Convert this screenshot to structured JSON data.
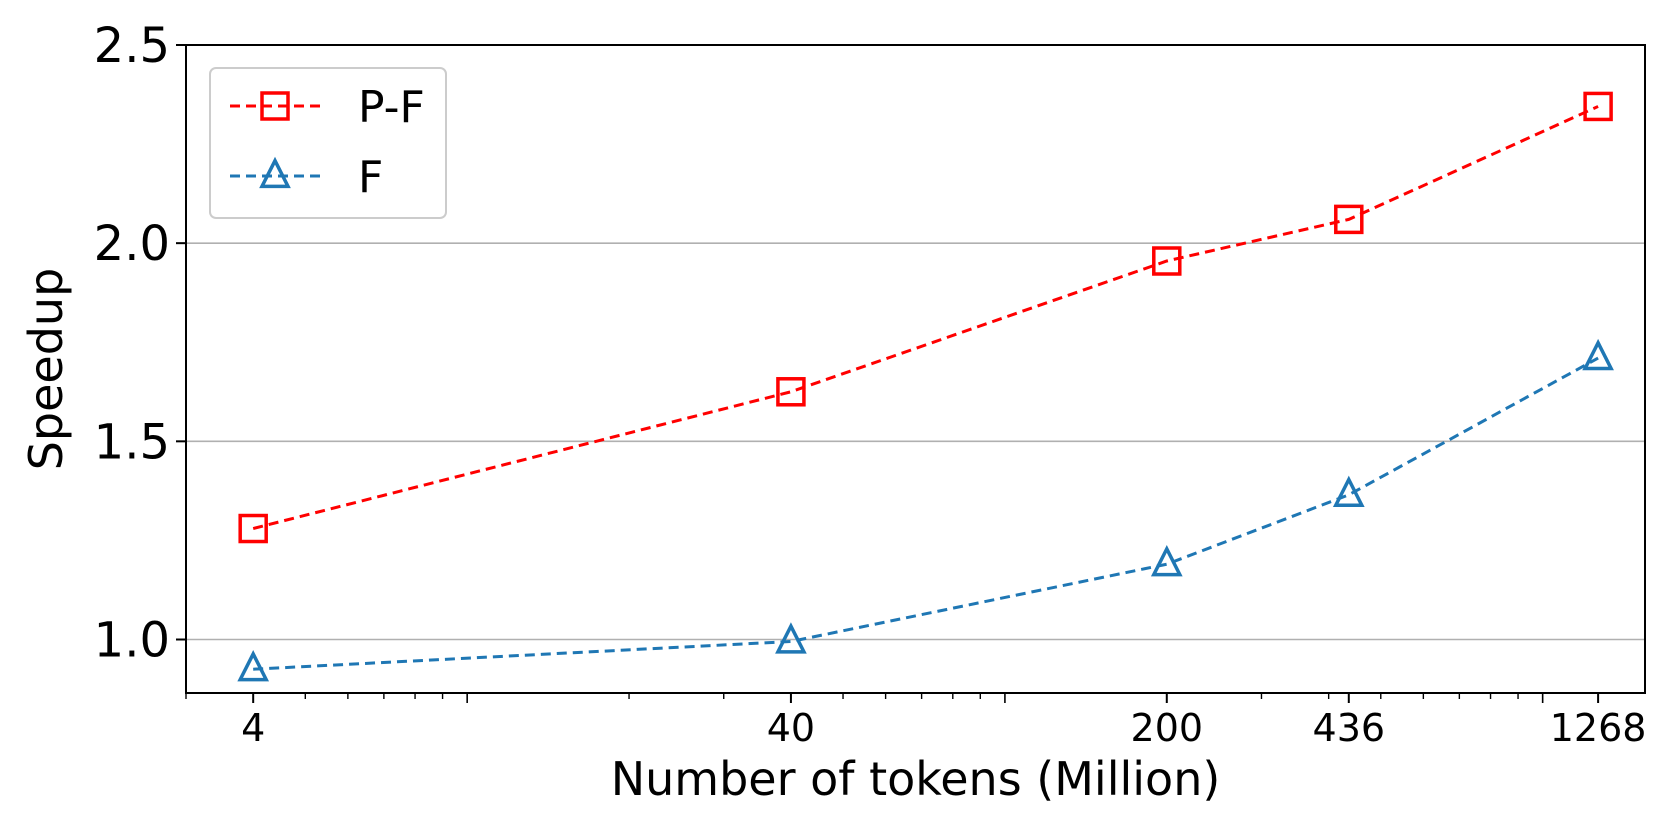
{
  "chart_data": {
    "type": "line",
    "title": "",
    "xlabel": "Number of tokens (Million)",
    "ylabel": "Speedup",
    "x_scale": "log",
    "x": [
      4,
      40,
      200,
      436,
      1268
    ],
    "x_tick_labels": [
      "4",
      "40",
      "200",
      "436",
      "1268"
    ],
    "xlim": [
      3,
      1550
    ],
    "ylim": [
      0.865,
      2.5
    ],
    "y_ticks": [
      1.0,
      1.5,
      2.0,
      2.5
    ],
    "y_tick_labels": [
      "1.0",
      "1.5",
      "2.0",
      "2.5"
    ],
    "grid": "horizontal",
    "legend_position": "top-left",
    "series": [
      {
        "name": "P-F",
        "color": "#ff0000",
        "marker": "square",
        "line_style": "dashed",
        "values": [
          1.28,
          1.625,
          1.955,
          2.06,
          2.345
        ]
      },
      {
        "name": "F",
        "color": "#1f77b4",
        "marker": "triangle",
        "line_style": "dashed",
        "values": [
          0.925,
          0.995,
          1.19,
          1.365,
          1.71
        ]
      }
    ]
  }
}
